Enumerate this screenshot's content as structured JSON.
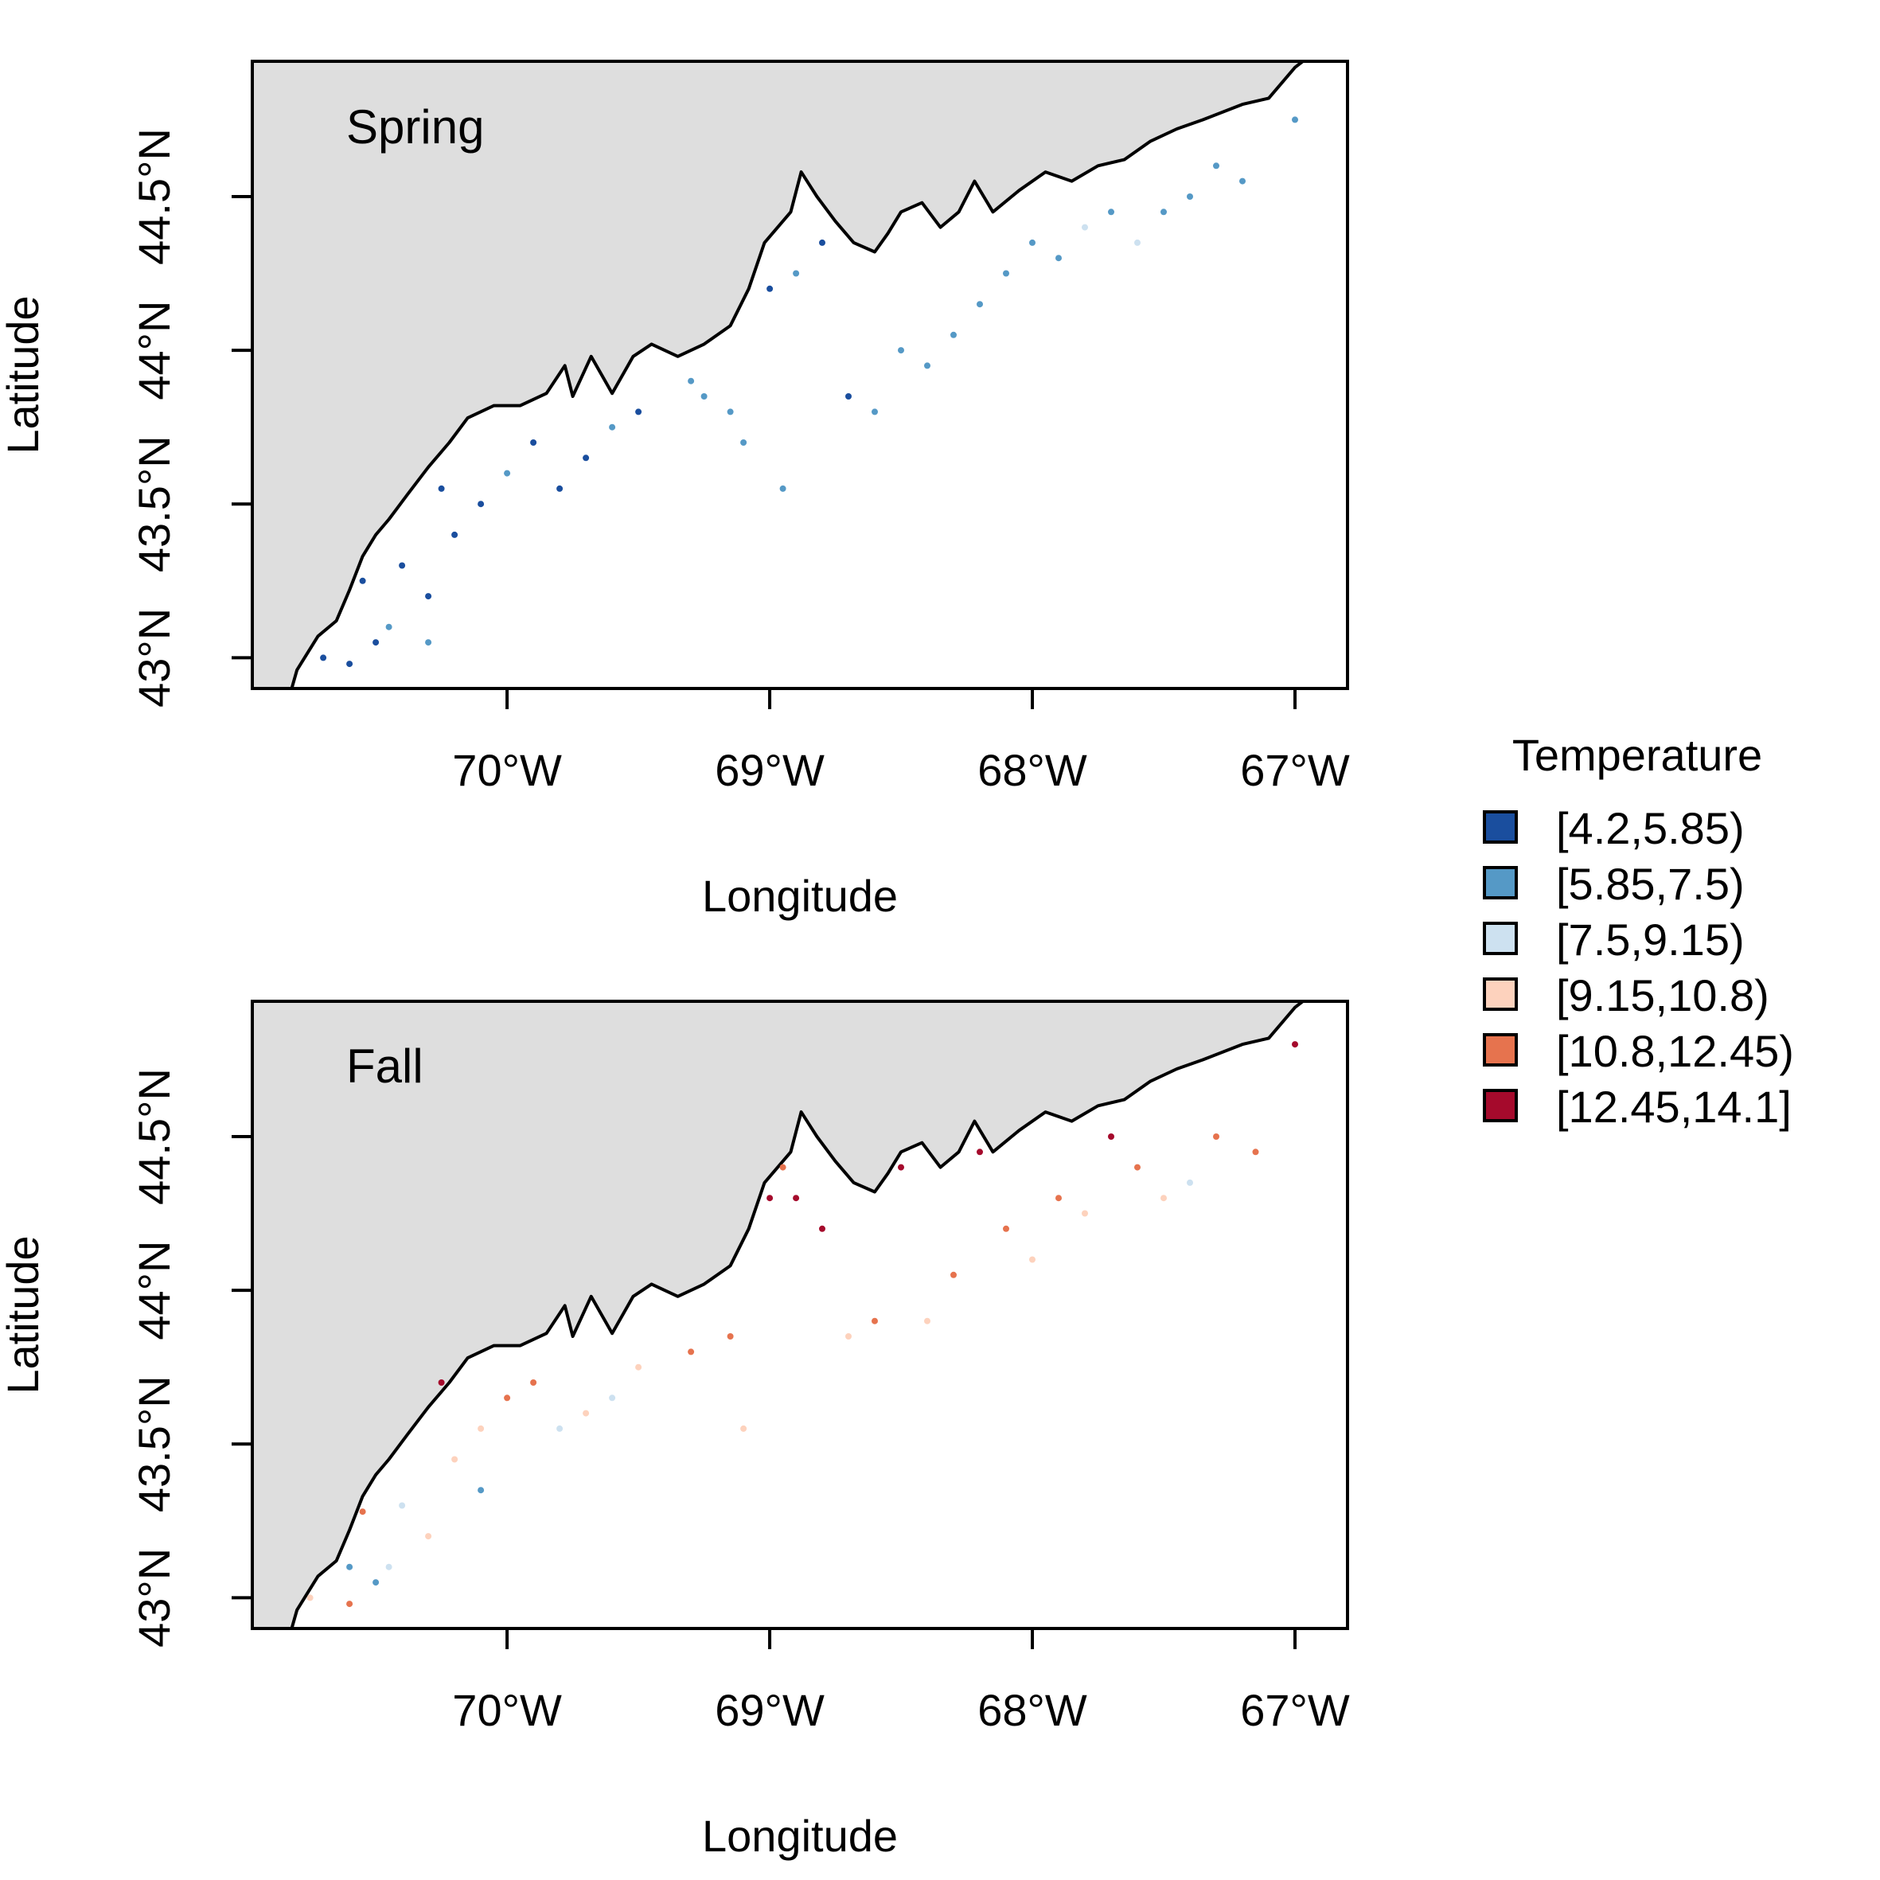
{
  "legend": {
    "title": "Temperature",
    "items": [
      {
        "label": "[4.2,5.85)",
        "color": "#1a4e9e"
      },
      {
        "label": "[5.85,7.5)",
        "color": "#5599c6"
      },
      {
        "label": "[7.5,9.15)",
        "color": "#cde1f0"
      },
      {
        "label": "[9.15,10.8)",
        "color": "#fdd2bd"
      },
      {
        "label": "[10.8,12.45)",
        "color": "#e6734e"
      },
      {
        "label": "[12.45,14.1]",
        "color": "#a50a2c"
      }
    ]
  },
  "chart_data": [
    {
      "type": "scatter",
      "title": "Spring",
      "xlabel": "Longitude",
      "ylabel": "Latitude",
      "xlim": [
        -70.97,
        -66.8
      ],
      "ylim": [
        42.9,
        44.94
      ],
      "x_ticks": [
        -70,
        -69,
        -68,
        -67
      ],
      "x_tick_labels": [
        "70°W",
        "69°W",
        "68°W",
        "67°W"
      ],
      "y_ticks": [
        43,
        43.5,
        44,
        44.5
      ],
      "y_tick_labels": [
        "43°N",
        "43.5°N",
        "44°N",
        "44.5°N"
      ],
      "land_color": "#dedede",
      "points": [
        {
          "lon": -70.7,
          "lat": 43.0,
          "class": 0
        },
        {
          "lon": -70.6,
          "lat": 42.98,
          "class": 0
        },
        {
          "lon": -70.5,
          "lat": 43.05,
          "class": 0
        },
        {
          "lon": -70.45,
          "lat": 43.1,
          "class": 1
        },
        {
          "lon": -70.55,
          "lat": 43.25,
          "class": 0
        },
        {
          "lon": -70.4,
          "lat": 43.3,
          "class": 0
        },
        {
          "lon": -70.3,
          "lat": 43.2,
          "class": 0
        },
        {
          "lon": -70.2,
          "lat": 43.4,
          "class": 0
        },
        {
          "lon": -70.25,
          "lat": 43.55,
          "class": 0
        },
        {
          "lon": -70.1,
          "lat": 43.5,
          "class": 0
        },
        {
          "lon": -70.0,
          "lat": 43.6,
          "class": 1
        },
        {
          "lon": -69.9,
          "lat": 43.7,
          "class": 0
        },
        {
          "lon": -69.8,
          "lat": 43.55,
          "class": 0
        },
        {
          "lon": -69.7,
          "lat": 43.65,
          "class": 0
        },
        {
          "lon": -69.6,
          "lat": 43.75,
          "class": 1
        },
        {
          "lon": -69.5,
          "lat": 43.8,
          "class": 0
        },
        {
          "lon": -69.3,
          "lat": 43.9,
          "class": 1
        },
        {
          "lon": -69.15,
          "lat": 43.8,
          "class": 1
        },
        {
          "lon": -69.1,
          "lat": 43.7,
          "class": 1
        },
        {
          "lon": -69.0,
          "lat": 44.2,
          "class": 0
        },
        {
          "lon": -68.9,
          "lat": 44.25,
          "class": 1
        },
        {
          "lon": -68.8,
          "lat": 44.35,
          "class": 0
        },
        {
          "lon": -68.7,
          "lat": 43.85,
          "class": 0
        },
        {
          "lon": -68.6,
          "lat": 43.8,
          "class": 1
        },
        {
          "lon": -68.5,
          "lat": 44.0,
          "class": 1
        },
        {
          "lon": -68.4,
          "lat": 43.95,
          "class": 1
        },
        {
          "lon": -68.3,
          "lat": 44.05,
          "class": 1
        },
        {
          "lon": -68.2,
          "lat": 44.15,
          "class": 1
        },
        {
          "lon": -68.1,
          "lat": 44.25,
          "class": 1
        },
        {
          "lon": -68.0,
          "lat": 44.35,
          "class": 1
        },
        {
          "lon": -67.9,
          "lat": 44.3,
          "class": 1
        },
        {
          "lon": -67.8,
          "lat": 44.4,
          "class": 2
        },
        {
          "lon": -67.7,
          "lat": 44.45,
          "class": 1
        },
        {
          "lon": -67.6,
          "lat": 44.35,
          "class": 2
        },
        {
          "lon": -67.5,
          "lat": 44.45,
          "class": 1
        },
        {
          "lon": -67.4,
          "lat": 44.5,
          "class": 1
        },
        {
          "lon": -67.3,
          "lat": 44.6,
          "class": 1
        },
        {
          "lon": -67.2,
          "lat": 44.55,
          "class": 1
        },
        {
          "lon": -67.0,
          "lat": 44.75,
          "class": 1
        },
        {
          "lon": -68.95,
          "lat": 43.55,
          "class": 1
        },
        {
          "lon": -69.25,
          "lat": 43.85,
          "class": 1
        },
        {
          "lon": -70.3,
          "lat": 43.05,
          "class": 1
        }
      ]
    },
    {
      "type": "scatter",
      "title": "Fall",
      "xlabel": "Longitude",
      "ylabel": "Latitude",
      "xlim": [
        -70.97,
        -66.8
      ],
      "ylim": [
        42.9,
        44.94
      ],
      "x_ticks": [
        -70,
        -69,
        -68,
        -67
      ],
      "x_tick_labels": [
        "70°W",
        "69°W",
        "68°W",
        "67°W"
      ],
      "y_ticks": [
        43,
        43.5,
        44,
        44.5
      ],
      "y_tick_labels": [
        "43°N",
        "43.5°N",
        "44°N",
        "44.5°N"
      ],
      "land_color": "#dedede",
      "points": [
        {
          "lon": -70.75,
          "lat": 43.0,
          "class": 3
        },
        {
          "lon": -70.6,
          "lat": 42.98,
          "class": 4
        },
        {
          "lon": -70.5,
          "lat": 43.05,
          "class": 1
        },
        {
          "lon": -70.45,
          "lat": 43.1,
          "class": 2
        },
        {
          "lon": -70.55,
          "lat": 43.28,
          "class": 4
        },
        {
          "lon": -70.4,
          "lat": 43.3,
          "class": 2
        },
        {
          "lon": -70.3,
          "lat": 43.2,
          "class": 3
        },
        {
          "lon": -70.2,
          "lat": 43.45,
          "class": 3
        },
        {
          "lon": -70.25,
          "lat": 43.7,
          "class": 5
        },
        {
          "lon": -70.1,
          "lat": 43.55,
          "class": 3
        },
        {
          "lon": -70.0,
          "lat": 43.65,
          "class": 4
        },
        {
          "lon": -69.9,
          "lat": 43.7,
          "class": 4
        },
        {
          "lon": -69.8,
          "lat": 43.55,
          "class": 2
        },
        {
          "lon": -69.7,
          "lat": 43.6,
          "class": 3
        },
        {
          "lon": -69.6,
          "lat": 43.65,
          "class": 2
        },
        {
          "lon": -69.5,
          "lat": 43.75,
          "class": 3
        },
        {
          "lon": -69.3,
          "lat": 43.8,
          "class": 4
        },
        {
          "lon": -69.15,
          "lat": 43.85,
          "class": 4
        },
        {
          "lon": -69.1,
          "lat": 43.55,
          "class": 3
        },
        {
          "lon": -69.0,
          "lat": 44.3,
          "class": 5
        },
        {
          "lon": -68.9,
          "lat": 44.3,
          "class": 5
        },
        {
          "lon": -68.8,
          "lat": 44.2,
          "class": 5
        },
        {
          "lon": -68.7,
          "lat": 43.85,
          "class": 3
        },
        {
          "lon": -68.6,
          "lat": 43.9,
          "class": 4
        },
        {
          "lon": -68.5,
          "lat": 44.4,
          "class": 5
        },
        {
          "lon": -68.4,
          "lat": 43.9,
          "class": 3
        },
        {
          "lon": -68.3,
          "lat": 44.05,
          "class": 4
        },
        {
          "lon": -68.2,
          "lat": 44.45,
          "class": 5
        },
        {
          "lon": -68.1,
          "lat": 44.2,
          "class": 4
        },
        {
          "lon": -68.0,
          "lat": 44.1,
          "class": 3
        },
        {
          "lon": -67.9,
          "lat": 44.3,
          "class": 4
        },
        {
          "lon": -67.8,
          "lat": 44.25,
          "class": 3
        },
        {
          "lon": -67.7,
          "lat": 44.5,
          "class": 5
        },
        {
          "lon": -67.6,
          "lat": 44.4,
          "class": 4
        },
        {
          "lon": -67.5,
          "lat": 44.3,
          "class": 3
        },
        {
          "lon": -67.4,
          "lat": 44.35,
          "class": 2
        },
        {
          "lon": -67.3,
          "lat": 44.5,
          "class": 4
        },
        {
          "lon": -67.15,
          "lat": 44.45,
          "class": 4
        },
        {
          "lon": -67.0,
          "lat": 44.8,
          "class": 5
        },
        {
          "lon": -68.95,
          "lat": 44.4,
          "class": 4
        },
        {
          "lon": -70.6,
          "lat": 43.1,
          "class": 1
        },
        {
          "lon": -70.1,
          "lat": 43.35,
          "class": 1
        }
      ]
    }
  ]
}
